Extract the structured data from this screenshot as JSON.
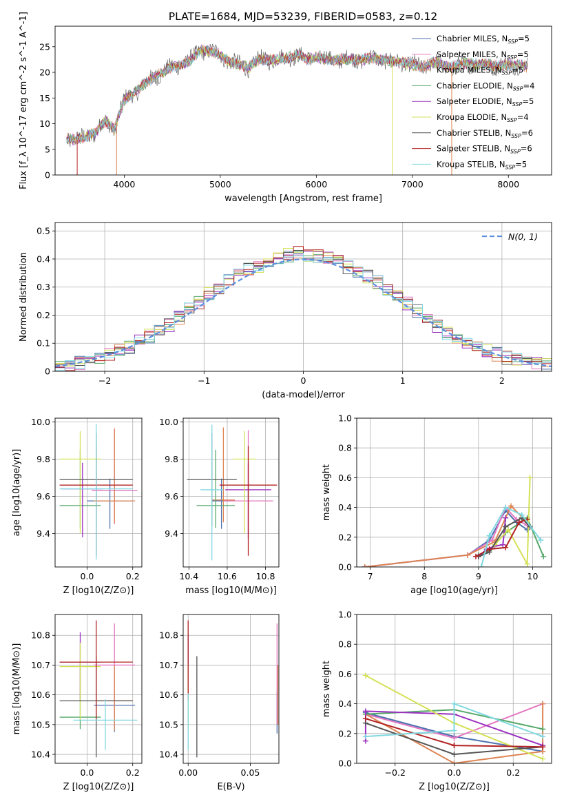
{
  "figure_title": "PLATE=1684, MJD=53239, FIBERID=0583, z=0.12",
  "colors": {
    "Chabrier MILES": "#4c72b0",
    "Salpeter MILES": "#e377c2",
    "Kroupa MILES": "#dd8452",
    "Chabrier ELODIE": "#55a868",
    "Salpeter ELODIE": "#9b30c0",
    "Kroupa ELODIE": "#d4e157",
    "Chabrier STELIB": "#555555",
    "Salpeter STELIB": "#b22222",
    "Kroupa STELIB": "#7fd8e0",
    "gauss": "#5b8ee0"
  },
  "legend": [
    {
      "label": "Chabrier MILES, N_SSP=5"
    },
    {
      "label": "Salpeter MILES, N_SSP=5"
    },
    {
      "label": "Kroupa MILES, N_SSP=5"
    },
    {
      "label": "Chabrier ELODIE, N_SSP=4"
    },
    {
      "label": "Salpeter ELODIE, N_SSP=5"
    },
    {
      "label": "Kroupa ELODIE, N_SSP=4"
    },
    {
      "label": "Chabrier STELIB, N_SSP=6"
    },
    {
      "label": "Salpeter STELIB, N_SSP=6"
    },
    {
      "label": "Kroupa STELIB, N_SSP=5"
    }
  ],
  "chart_data": [
    {
      "id": "spectrum",
      "type": "line",
      "xlabel": "wavelength [Angstrom, rest frame]",
      "ylabel": "Flux [f_λ 10^-17 erg cm^-2 s^-1 A^-1]",
      "xlim": [
        3280,
        8450
      ],
      "ylim": [
        0,
        29
      ],
      "xticks": [
        4000,
        5000,
        6000,
        7000,
        8000
      ],
      "yticks": [
        0,
        5,
        10,
        15,
        20,
        25
      ],
      "grid": false,
      "legend_position": "right",
      "x": [
        3400,
        3500,
        3600,
        3700,
        3800,
        3900,
        3950,
        4000,
        4100,
        4200,
        4300,
        4400,
        4500,
        4600,
        4700,
        4800,
        4900,
        5000,
        5100,
        5200,
        5300,
        5400,
        5500,
        5600,
        5700,
        5800,
        5900,
        6000,
        6100,
        6200,
        6300,
        6400,
        6500,
        6600,
        6700,
        6800,
        6900,
        7000,
        7100,
        7200,
        7300,
        7400,
        7500,
        7600,
        7700,
        7800,
        7900,
        8000,
        8100,
        8200
      ],
      "y": [
        7.2,
        6.8,
        7.5,
        8.2,
        10.5,
        9.0,
        12.0,
        14.5,
        16.0,
        17.5,
        19.0,
        20.0,
        21.0,
        21.5,
        22.5,
        24.5,
        24.0,
        23.5,
        22.0,
        21.5,
        21.0,
        22.5,
        22.5,
        22.5,
        22.8,
        23.5,
        22.5,
        23.0,
        22.5,
        22.5,
        22.5,
        22.5,
        22.5,
        22.8,
        22.5,
        22.0,
        22.0,
        21.5,
        21.0,
        22.0,
        21.5,
        21.0,
        21.5,
        21.8,
        21.5,
        21.5,
        21.2,
        21.5,
        21.5,
        21.0
      ]
    },
    {
      "id": "residuals",
      "type": "line",
      "xlabel": "(data-model)/error",
      "ylabel": "Normed distribution",
      "xlim": [
        -2.5,
        2.5
      ],
      "ylim": [
        0,
        0.53
      ],
      "xticks": [
        -2,
        -1,
        0,
        1,
        2
      ],
      "yticks": [
        0.0,
        0.1,
        0.2,
        0.3,
        0.4,
        0.5
      ],
      "grid": true,
      "legend_position": "top-right",
      "gauss_label": "N(0, 1)",
      "bin_width": 0.1,
      "x": [
        -2.45,
        -2.35,
        -2.25,
        -2.15,
        -2.05,
        -1.95,
        -1.85,
        -1.75,
        -1.65,
        -1.55,
        -1.45,
        -1.35,
        -1.25,
        -1.15,
        -1.05,
        -0.95,
        -0.85,
        -0.75,
        -0.65,
        -0.55,
        -0.45,
        -0.35,
        -0.25,
        -0.15,
        -0.05,
        0.05,
        0.15,
        0.25,
        0.35,
        0.45,
        0.55,
        0.65,
        0.75,
        0.85,
        0.95,
        1.05,
        1.15,
        1.25,
        1.35,
        1.45,
        1.55,
        1.65,
        1.75,
        1.85,
        1.95,
        2.05,
        2.15,
        2.25,
        2.35,
        2.45
      ],
      "y": [
        0.02,
        0.025,
        0.03,
        0.035,
        0.045,
        0.06,
        0.075,
        0.09,
        0.11,
        0.13,
        0.15,
        0.17,
        0.2,
        0.23,
        0.26,
        0.29,
        0.31,
        0.34,
        0.37,
        0.38,
        0.38,
        0.4,
        0.42,
        0.43,
        0.44,
        0.43,
        0.42,
        0.41,
        0.4,
        0.38,
        0.37,
        0.35,
        0.33,
        0.31,
        0.28,
        0.25,
        0.22,
        0.19,
        0.16,
        0.13,
        0.11,
        0.095,
        0.08,
        0.07,
        0.06,
        0.05,
        0.04,
        0.035,
        0.03,
        0.025
      ]
    },
    {
      "id": "age-vs-Z",
      "type": "scatter",
      "xlabel": "Z [log10(Z/Z⊙)]",
      "ylabel": "age  [log10(age/yr)]",
      "xlim": [
        -0.14,
        0.24
      ],
      "ylim": [
        9.22,
        10.02
      ],
      "xticks": [
        "0.0",
        "0.2"
      ],
      "yticks": [
        "9.4",
        "9.6",
        "9.8",
        "10.0"
      ],
      "grid": true,
      "points": [
        {
          "model": "Chabrier MILES",
          "x": 0.1,
          "y": 9.575,
          "xerr": 0.1,
          "yerr_lo": 0.15,
          "yerr_hi": 0.12
        },
        {
          "model": "Salpeter MILES",
          "x": 0.12,
          "y": 9.63,
          "xerr": 0.1,
          "yerr_lo": 0.18,
          "yerr_hi": 0.33
        },
        {
          "model": "Kroupa MILES",
          "x": 0.12,
          "y": 9.575,
          "xerr": 0.09,
          "yerr_lo": 0.12,
          "yerr_hi": 0.39
        },
        {
          "model": "Chabrier ELODIE",
          "x": -0.03,
          "y": 9.55,
          "xerr": 0.09,
          "yerr_lo": 0.12,
          "yerr_hi": 0.3
        },
        {
          "model": "Salpeter ELODIE",
          "x": -0.02,
          "y": 9.64,
          "xerr": 0.09,
          "yerr_lo": 0.26,
          "yerr_hi": 0.14
        },
        {
          "model": "Kroupa ELODIE",
          "x": -0.03,
          "y": 9.8,
          "xerr": 0.09,
          "yerr_lo": 0.4,
          "yerr_hi": 0.15
        },
        {
          "model": "Chabrier STELIB",
          "x": 0.04,
          "y": 9.69,
          "xerr": 0.16,
          "yerr_lo": 0.25,
          "yerr_hi": 0.25
        },
        {
          "model": "Salpeter STELIB",
          "x": 0.04,
          "y": 9.66,
          "xerr": 0.16,
          "yerr_lo": 0.38,
          "yerr_hi": 0.21
        },
        {
          "model": "Kroupa STELIB",
          "x": 0.04,
          "y": 9.64,
          "xerr": 0.16,
          "yerr_lo": 0.38,
          "yerr_hi": 0.35
        }
      ]
    },
    {
      "id": "age-vs-mass",
      "type": "scatter",
      "xlabel": "mass [log10(M/M⊙)]",
      "ylabel": "",
      "xlim": [
        10.37,
        10.87
      ],
      "ylim": [
        9.22,
        10.02
      ],
      "xticks": [
        "10.4",
        "10.6",
        "10.8"
      ],
      "yticks": [
        "9.4",
        "9.6",
        "9.8",
        "10.0"
      ],
      "grid": true,
      "points": [
        {
          "model": "Chabrier MILES",
          "x": 10.57,
          "y": 9.575,
          "xerr": 0.05,
          "yerr_lo": 0.15,
          "yerr_hi": 0.12
        },
        {
          "model": "Salpeter MILES",
          "x": 10.71,
          "y": 9.575,
          "xerr": 0.13,
          "yerr_lo": 0.18,
          "yerr_hi": 0.38
        },
        {
          "model": "Kroupa MILES",
          "x": 10.58,
          "y": 9.58,
          "xerr": 0.06,
          "yerr_lo": 0.12,
          "yerr_hi": 0.39
        },
        {
          "model": "Chabrier ELODIE",
          "x": 10.54,
          "y": 9.55,
          "xerr": 0.1,
          "yerr_lo": 0.12,
          "yerr_hi": 0.3
        },
        {
          "model": "Salpeter ELODIE",
          "x": 10.71,
          "y": 9.635,
          "xerr": 0.12,
          "yerr_lo": 0.26,
          "yerr_hi": 0.14
        },
        {
          "model": "Kroupa ELODIE",
          "x": 10.69,
          "y": 9.8,
          "xerr": 0.06,
          "yerr_lo": 0.4,
          "yerr_hi": 0.15
        },
        {
          "model": "Chabrier STELIB",
          "x": 10.52,
          "y": 9.69,
          "xerr": 0.13,
          "yerr_lo": 0.25,
          "yerr_hi": 0.25
        },
        {
          "model": "Salpeter STELIB",
          "x": 10.71,
          "y": 9.66,
          "xerr": 0.15,
          "yerr_lo": 0.38,
          "yerr_hi": 0.21
        },
        {
          "model": "Kroupa STELIB",
          "x": 10.52,
          "y": 9.635,
          "xerr": 0.06,
          "yerr_lo": 0.38,
          "yerr_hi": 0.35
        }
      ]
    },
    {
      "id": "weight-vs-age",
      "type": "line",
      "xlabel": "age  [log10(age/yr)]",
      "ylabel": "mass weight",
      "xlim": [
        6.75,
        10.35
      ],
      "ylim": [
        0,
        1.0
      ],
      "xticks": [
        "7",
        "8",
        "9",
        "10"
      ],
      "yticks": [
        "0.0",
        "0.2",
        "0.4",
        "0.6",
        "0.8",
        "1.0"
      ],
      "grid": true,
      "series": [
        {
          "model": "Chabrier MILES",
          "x": [
            6.9,
            8.8,
            9.2,
            9.5,
            9.7,
            9.9
          ],
          "y": [
            0.0,
            0.08,
            0.18,
            0.38,
            0.3,
            0.25
          ]
        },
        {
          "model": "Salpeter MILES",
          "x": [
            6.9,
            8.8,
            9.25,
            9.5,
            9.7,
            9.9
          ],
          "y": [
            0.0,
            0.08,
            0.18,
            0.4,
            0.32,
            0.28
          ]
        },
        {
          "model": "Kroupa MILES",
          "x": [
            6.9,
            8.8,
            9.3,
            9.6,
            9.9
          ],
          "y": [
            0.0,
            0.08,
            0.17,
            0.41,
            0.3
          ]
        },
        {
          "model": "Chabrier ELODIE",
          "x": [
            9.0,
            9.2,
            9.5,
            9.9,
            10.2
          ],
          "y": [
            0.08,
            0.11,
            0.23,
            0.33,
            0.07
          ]
        },
        {
          "model": "Salpeter ELODIE",
          "x": [
            9.0,
            9.15,
            9.3,
            9.45,
            9.5
          ],
          "y": [
            0.07,
            0.12,
            0.14,
            0.15,
            0.33
          ]
        },
        {
          "model": "Kroupa ELODIE",
          "x": [
            9.3,
            9.55,
            9.9,
            9.95
          ],
          "y": [
            0.15,
            0.25,
            0.02,
            0.6
          ]
        },
        {
          "model": "Chabrier STELIB",
          "x": [
            9.0,
            9.2,
            9.5,
            9.8,
            9.95
          ],
          "y": [
            0.07,
            0.1,
            0.27,
            0.33,
            0.27
          ]
        },
        {
          "model": "Salpeter STELIB",
          "x": [
            8.95,
            9.2,
            9.5,
            9.75,
            9.9
          ],
          "y": [
            0.07,
            0.12,
            0.13,
            0.3,
            0.32
          ]
        },
        {
          "model": "Kroupa STELIB",
          "x": [
            9.05,
            9.2,
            9.5,
            9.8,
            10.15
          ],
          "y": [
            0.0,
            0.21,
            0.4,
            0.35,
            0.18
          ]
        }
      ]
    },
    {
      "id": "mass-vs-Z",
      "type": "scatter",
      "xlabel": "Z [log10(Z/Z⊙)]",
      "ylabel": "mass [log10(M/M⊙)]",
      "xlim": [
        -0.14,
        0.24
      ],
      "ylim": [
        10.37,
        10.87
      ],
      "xticks": [
        "0.0",
        "0.2"
      ],
      "yticks": [
        "10.4",
        "10.5",
        "10.6",
        "10.7",
        "10.8"
      ],
      "grid": true,
      "points": [
        {
          "model": "Chabrier MILES",
          "x": 0.12,
          "y": 10.565,
          "xerr": 0.09,
          "yerr_lo": 0.09,
          "yerr_hi": 0.05
        },
        {
          "model": "Salpeter MILES",
          "x": 0.12,
          "y": 10.7,
          "xerr": 0.09,
          "yerr_lo": 0.2,
          "yerr_hi": 0.14
        },
        {
          "model": "Kroupa MILES",
          "x": 0.12,
          "y": 10.58,
          "xerr": 0.08,
          "yerr_lo": 0.1,
          "yerr_hi": 0.12
        },
        {
          "model": "Chabrier ELODIE",
          "x": -0.03,
          "y": 10.525,
          "xerr": 0.09,
          "yerr_lo": 0.04,
          "yerr_hi": 0.18
        },
        {
          "model": "Salpeter ELODIE",
          "x": -0.03,
          "y": 10.71,
          "xerr": 0.09,
          "yerr_lo": 0.13,
          "yerr_hi": 0.1
        },
        {
          "model": "Kroupa ELODIE",
          "x": -0.03,
          "y": 10.695,
          "xerr": 0.09,
          "yerr_lo": 0.18,
          "yerr_hi": 0.08
        },
        {
          "model": "Chabrier STELIB",
          "x": 0.04,
          "y": 10.58,
          "xerr": 0.16,
          "yerr_lo": 0.19,
          "yerr_hi": 0.15
        },
        {
          "model": "Salpeter STELIB",
          "x": 0.04,
          "y": 10.71,
          "xerr": 0.16,
          "yerr_lo": 0.19,
          "yerr_hi": 0.14
        },
        {
          "model": "Kroupa STELIB",
          "x": 0.08,
          "y": 10.515,
          "xerr": 0.14,
          "yerr_lo": 0.1,
          "yerr_hi": 0.07
        }
      ]
    },
    {
      "id": "mass-vs-EBV",
      "type": "scatter",
      "xlabel": "E(B-V)",
      "ylabel": "",
      "xlim": [
        -0.004,
        0.073
      ],
      "ylim": [
        10.37,
        10.87
      ],
      "xticks": [
        "0.00",
        "0.05"
      ],
      "yticks": [
        "10.4",
        "10.5",
        "10.6",
        "10.7",
        "10.8"
      ],
      "grid": true,
      "points": [
        {
          "model": "Chabrier MILES",
          "x": 0.0715,
          "y": 10.56,
          "xerr": 0,
          "yerr_lo": 0.09,
          "yerr_hi": 0.05
        },
        {
          "model": "Salpeter MILES",
          "x": 0.0715,
          "y": 10.7,
          "xerr": 0,
          "yerr_lo": 0.2,
          "yerr_hi": 0.14
        },
        {
          "model": "Kroupa MILES",
          "x": 0.0722,
          "y": 10.58,
          "xerr": 0,
          "yerr_lo": 0.08,
          "yerr_hi": 0.12
        },
        {
          "model": "Chabrier ELODIE",
          "x": 0.0,
          "y": 10.55,
          "xerr": 0,
          "yerr_lo": 0.05,
          "yerr_hi": 0.15
        },
        {
          "model": "Salpeter ELODIE",
          "x": 0.0,
          "y": 10.7,
          "xerr": 0,
          "yerr_lo": 0.1,
          "yerr_hi": 0.1
        },
        {
          "model": "Kroupa ELODIE",
          "x": 0.0,
          "y": 10.6,
          "xerr": 0,
          "yerr_lo": 0.12,
          "yerr_hi": 0.1
        },
        {
          "model": "Chabrier STELIB",
          "x": 0.007,
          "y": 10.56,
          "xerr": 0,
          "yerr_lo": 0.17,
          "yerr_hi": 0.17
        },
        {
          "model": "Salpeter STELIB",
          "x": 0.0,
          "y": 10.71,
          "xerr": 0,
          "yerr_lo": 0.13,
          "yerr_hi": 0.14
        },
        {
          "model": "Kroupa STELIB",
          "x": 0.0,
          "y": 10.515,
          "xerr": 0,
          "yerr_lo": 0.1,
          "yerr_hi": 0.09
        }
      ]
    },
    {
      "id": "weight-vs-Z",
      "type": "line",
      "xlabel": "Z [log10(Z/Z⊙)]",
      "ylabel": "mass weight",
      "xlim": [
        -0.33,
        0.33
      ],
      "ylim": [
        0,
        1.0
      ],
      "xticks": [
        "−0.2",
        "0.0",
        "0.2"
      ],
      "yticks": [
        "0.0",
        "0.2",
        "0.4",
        "0.6",
        "0.8",
        "1.0"
      ],
      "grid": true,
      "series": [
        {
          "model": "Chabrier MILES",
          "x": [
            -0.3,
            0.0,
            0.3
          ],
          "y": [
            0.34,
            0.18,
            0.08
          ]
        },
        {
          "model": "Salpeter MILES",
          "x": [
            -0.3,
            0.0,
            0.3
          ],
          "y": [
            0.33,
            0.17,
            0.4
          ]
        },
        {
          "model": "Kroupa MILES",
          "x": [
            -0.3,
            0.0,
            0.3,
            0.3
          ],
          "y": [
            0.33,
            0.0,
            0.08,
            0.4
          ]
        },
        {
          "model": "Chabrier ELODIE",
          "x": [
            -0.3,
            0.0,
            0.3
          ],
          "y": [
            0.33,
            0.36,
            0.23
          ]
        },
        {
          "model": "Salpeter ELODIE",
          "x": [
            -0.3,
            -0.3,
            0.0,
            0.3
          ],
          "y": [
            0.15,
            0.35,
            0.33,
            0.12
          ]
        },
        {
          "model": "Kroupa ELODIE",
          "x": [
            -0.3,
            0.0,
            0.3
          ],
          "y": [
            0.59,
            0.27,
            0.03
          ]
        },
        {
          "model": "Chabrier STELIB",
          "x": [
            -0.3,
            0.0,
            0.3
          ],
          "y": [
            0.27,
            0.06,
            0.11
          ]
        },
        {
          "model": "Salpeter STELIB",
          "x": [
            -0.3,
            0.0,
            0.0,
            0.3
          ],
          "y": [
            0.3,
            0.12,
            0.12,
            0.11
          ]
        },
        {
          "model": "Kroupa STELIB",
          "x": [
            -0.3,
            0.0,
            0.0,
            0.3
          ],
          "y": [
            0.18,
            0.22,
            0.4,
            0.18
          ]
        }
      ]
    }
  ]
}
